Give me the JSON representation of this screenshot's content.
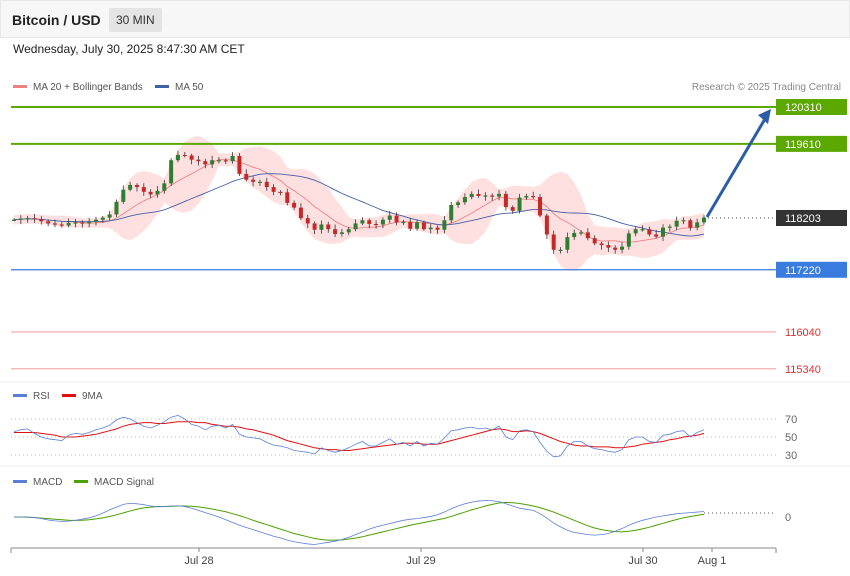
{
  "header": {
    "title": "Bitcoin / USD",
    "timeframe": "30 MIN",
    "datetime": "Wednesday, July 30, 2025 8:47:30 AM CET"
  },
  "legend": {
    "ma20": "MA 20 + Bollinger Bands",
    "ma50": "MA 50",
    "credit": "Research © 2025 Trading Central"
  },
  "colors": {
    "resistance": "#5aa800",
    "support": "#3a7be0",
    "target": "#e03030",
    "current": "#333333",
    "candle_up": "#2e7d32",
    "candle_down": "#c62828",
    "bollinger": "#ffd5d5",
    "ma20": "#f08080",
    "ma50": "#4060a8",
    "rsi": "#5b7fd6",
    "rsi_ma": "#e01010",
    "macd": "#5b7fd6",
    "macd_signal": "#4ca000",
    "arrow": "#2b5ea7"
  },
  "levels": {
    "r2": "120310",
    "r1": "119610",
    "current": "118203",
    "s1": "117220",
    "t1": "116040",
    "t2": "115340"
  },
  "rsi_panel": {
    "legend_rsi": "RSI",
    "legend_ma": "9MA",
    "ticks": [
      "70",
      "50",
      "30"
    ]
  },
  "macd_panel": {
    "legend_macd": "MACD",
    "legend_signal": "MACD Signal",
    "zero": "0"
  },
  "x_axis": {
    "labels": [
      "Jul 28",
      "Jul 29",
      "Jul 30",
      "Aug 1"
    ]
  },
  "chart_data": {
    "type": "candlestick",
    "x_labels": [
      "Jul 28",
      "Jul 29",
      "Jul 30",
      "Aug 1"
    ],
    "y_levels": [
      120310,
      119610,
      118203,
      117220,
      116040,
      115340
    ],
    "current_price": 118203,
    "close_series": [
      118170,
      118190,
      118200,
      118180,
      118140,
      118100,
      118080,
      118060,
      118110,
      118120,
      118100,
      118130,
      118170,
      118210,
      118270,
      118510,
      118740,
      118830,
      118790,
      118700,
      118650,
      118720,
      118860,
      119300,
      119400,
      119390,
      119310,
      119280,
      119220,
      119300,
      119300,
      119280,
      119380,
      119040,
      118930,
      118890,
      118890,
      118790,
      118700,
      118690,
      118490,
      118400,
      118200,
      118100,
      117980,
      118080,
      117990,
      117900,
      117930,
      117990,
      118100,
      118160,
      118090,
      118080,
      118170,
      118250,
      118120,
      118130,
      118000,
      118120,
      117990,
      118020,
      117980,
      118160,
      118450,
      118500,
      118600,
      118660,
      118620,
      118630,
      118610,
      118660,
      118410,
      118340,
      118590,
      118620,
      118600,
      118250,
      117890,
      117600,
      117600,
      117840,
      117920,
      117930,
      117820,
      117720,
      117690,
      117640,
      117600,
      117660,
      117910,
      117990,
      117990,
      117890,
      117850,
      118020,
      118040,
      118150,
      118160,
      118020,
      118120,
      118210
    ],
    "rsi": {
      "rsi_values": [
        56,
        58,
        59,
        54,
        50,
        48,
        47,
        46,
        52,
        54,
        53,
        55,
        58,
        60,
        63,
        69,
        72,
        70,
        66,
        62,
        60,
        63,
        67,
        72,
        74,
        70,
        64,
        62,
        58,
        62,
        63,
        60,
        64,
        53,
        50,
        49,
        48,
        44,
        41,
        40,
        38,
        35,
        34,
        33,
        31,
        38,
        35,
        33,
        35,
        38,
        42,
        45,
        40,
        40,
        44,
        48,
        42,
        44,
        40,
        45,
        40,
        43,
        42,
        49,
        57,
        58,
        60,
        61,
        59,
        60,
        58,
        62,
        50,
        47,
        57,
        58,
        56,
        44,
        34,
        28,
        29,
        40,
        45,
        45,
        40,
        37,
        36,
        34,
        33,
        36,
        47,
        50,
        50,
        45,
        44,
        52,
        53,
        56,
        57,
        50,
        55,
        58
      ],
      "ma9_values": [
        55,
        55,
        55,
        55,
        54,
        53,
        52,
        50,
        50,
        50,
        51,
        52,
        53,
        55,
        57,
        59,
        62,
        64,
        65,
        66,
        66,
        65,
        65,
        66,
        67,
        67,
        67,
        66,
        66,
        64,
        63,
        62,
        62,
        61,
        59,
        58,
        56,
        54,
        52,
        49,
        46,
        44,
        42,
        40,
        38,
        37,
        36,
        36,
        35,
        35,
        36,
        37,
        38,
        39,
        40,
        41,
        42,
        43,
        43,
        43,
        42,
        42,
        42,
        44,
        46,
        48,
        50,
        52,
        54,
        56,
        58,
        59,
        58,
        56,
        56,
        57,
        56,
        54,
        51,
        48,
        45,
        43,
        41,
        40,
        40,
        39,
        39,
        39,
        38,
        38,
        39,
        40,
        42,
        43,
        44,
        45,
        47,
        48,
        50,
        51,
        52,
        54
      ]
    },
    "macd": {
      "macd_values": [
        0,
        0,
        0,
        -10,
        -30,
        -55,
        -70,
        -80,
        -75,
        -60,
        -40,
        -15,
        20,
        70,
        130,
        180,
        230,
        250,
        240,
        225,
        200,
        185,
        190,
        200,
        205,
        190,
        160,
        120,
        80,
        40,
        0,
        -50,
        -100,
        -150,
        -190,
        -230,
        -270,
        -310,
        -350,
        -380,
        -420,
        -450,
        -470,
        -490,
        -500,
        -480,
        -460,
        -440,
        -410,
        -370,
        -320,
        -270,
        -220,
        -180,
        -150,
        -120,
        -90,
        -60,
        -40,
        -30,
        -10,
        10,
        40,
        90,
        150,
        200,
        240,
        270,
        290,
        300,
        295,
        280,
        240,
        200,
        160,
        140,
        120,
        60,
        -20,
        -110,
        -180,
        -240,
        -280,
        -300,
        -320,
        -330,
        -320,
        -300,
        -260,
        -210,
        -150,
        -100,
        -60,
        -30,
        0,
        20,
        40,
        60,
        70,
        80,
        90,
        100
      ],
      "signal_values": [
        0,
        0,
        -5,
        -10,
        -20,
        -30,
        -40,
        -50,
        -60,
        -62,
        -58,
        -50,
        -35,
        -15,
        10,
        40,
        75,
        110,
        140,
        165,
        180,
        190,
        190,
        195,
        200,
        200,
        195,
        185,
        165,
        145,
        120,
        95,
        60,
        25,
        -15,
        -60,
        -100,
        -140,
        -180,
        -220,
        -260,
        -300,
        -330,
        -360,
        -390,
        -410,
        -420,
        -420,
        -415,
        -400,
        -385,
        -360,
        -330,
        -300,
        -270,
        -240,
        -210,
        -180,
        -150,
        -125,
        -100,
        -75,
        -50,
        -25,
        10,
        50,
        90,
        130,
        165,
        200,
        230,
        255,
        265,
        260,
        245,
        225,
        200,
        170,
        130,
        90,
        40,
        -10,
        -60,
        -110,
        -160,
        -200,
        -230,
        -250,
        -265,
        -270,
        -260,
        -240,
        -215,
        -185,
        -150,
        -115,
        -80,
        -45,
        -15,
        10,
        30,
        50
      ]
    }
  }
}
